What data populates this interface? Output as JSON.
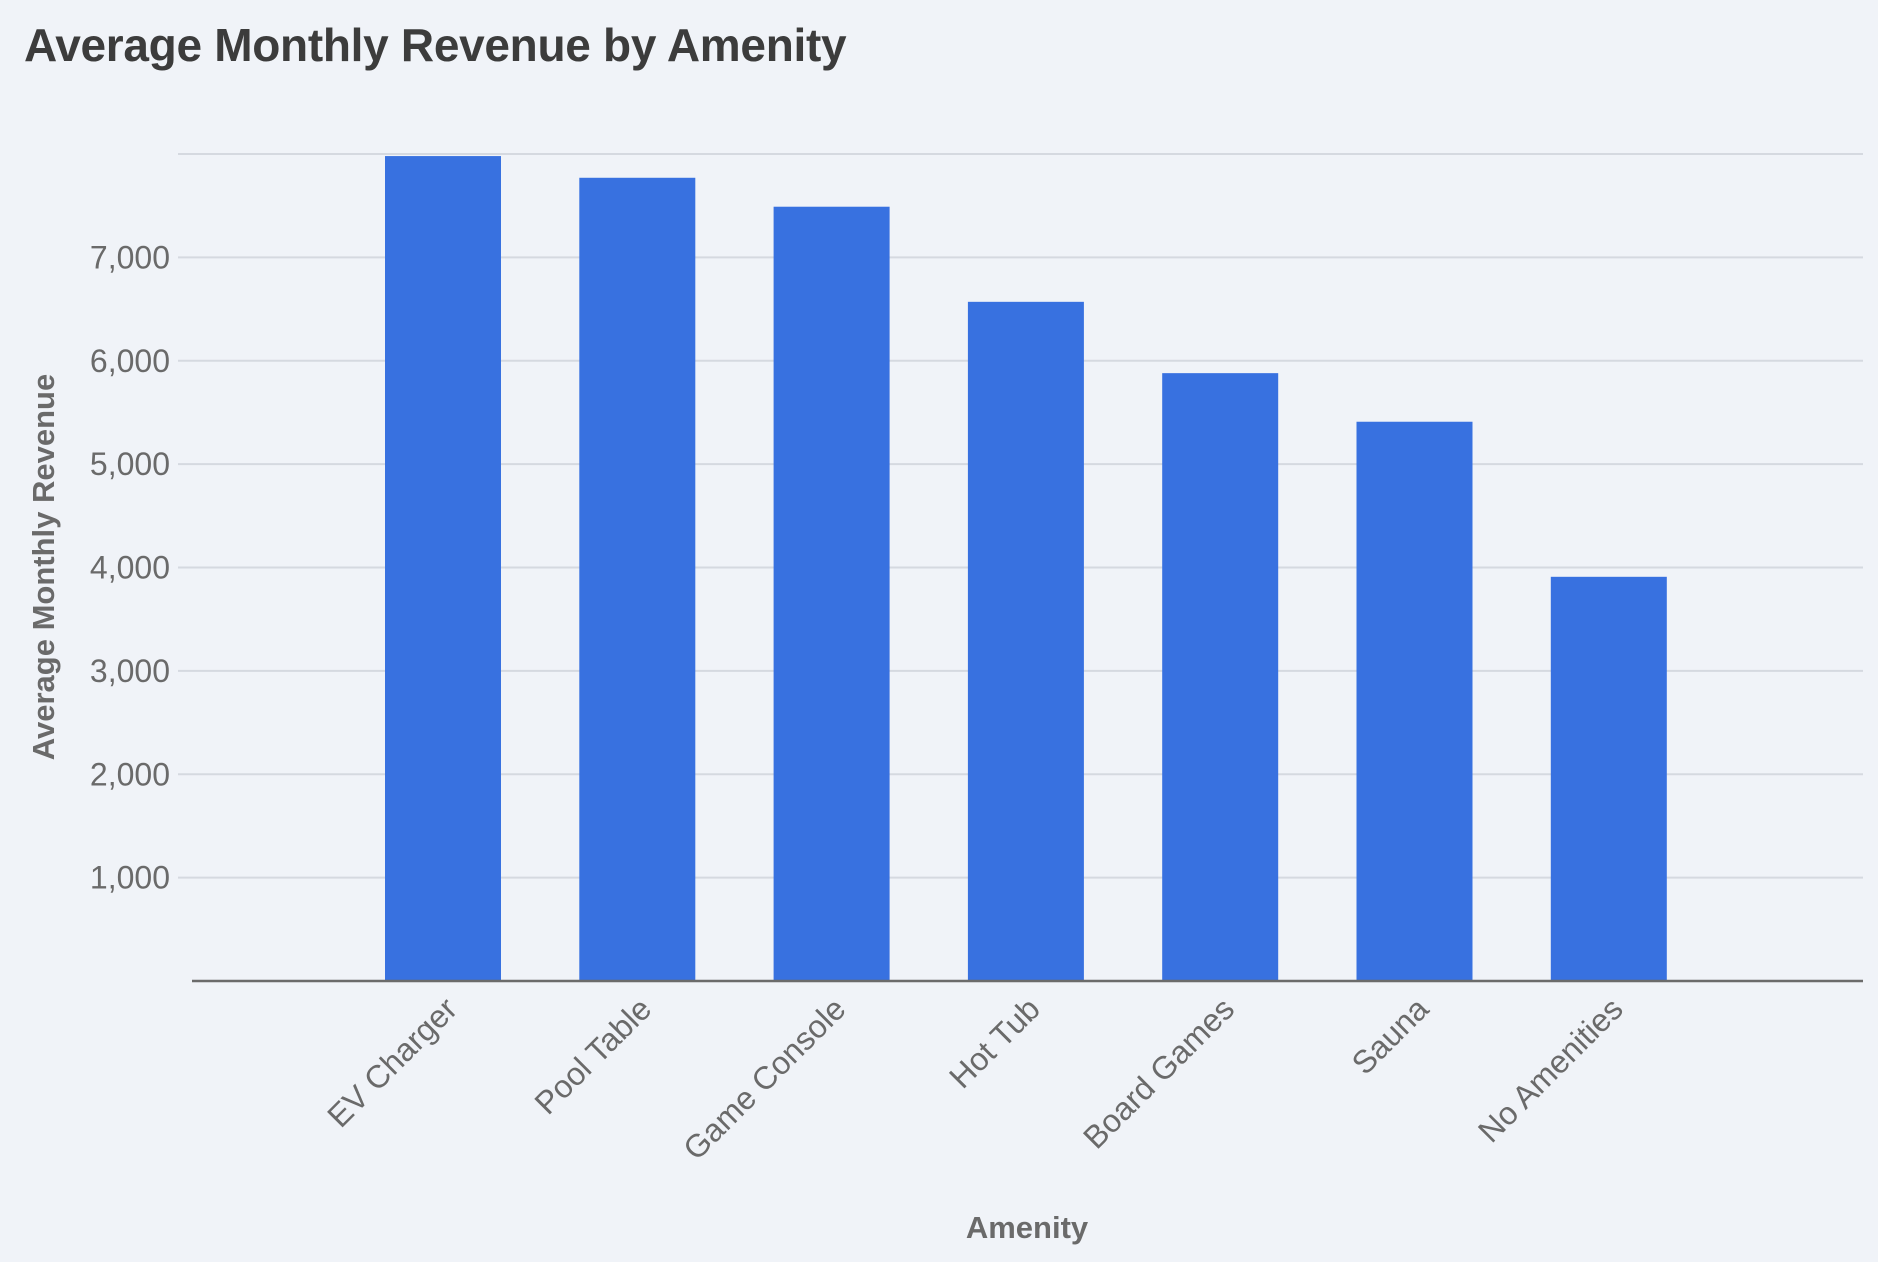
{
  "chart_data": {
    "type": "bar",
    "title": "Average Monthly Revenue by Amenity",
    "xlabel": "Amenity",
    "ylabel": "Average Monthly Revenue",
    "categories": [
      "EV Charger",
      "Pool Table",
      "Game Console",
      "Hot Tub",
      "Board Games",
      "Sauna",
      "No Amenities"
    ],
    "values": [
      7980,
      7770,
      7490,
      6570,
      5880,
      5410,
      3910
    ],
    "ylim": [
      0,
      8000
    ],
    "yticks": [
      1000,
      2000,
      3000,
      4000,
      5000,
      6000,
      7000
    ],
    "ytick_labels": [
      "1,000",
      "2,000",
      "3,000",
      "4,000",
      "5,000",
      "6,000",
      "7,000"
    ],
    "grid": true,
    "legend": "none"
  },
  "colors": {
    "bar": "#3871e0",
    "background": "#f0f3f8",
    "grid": "#d5d9e0",
    "axis": "#6b6b6b",
    "text": "#6a6a6a",
    "title": "#3c3c3c"
  }
}
